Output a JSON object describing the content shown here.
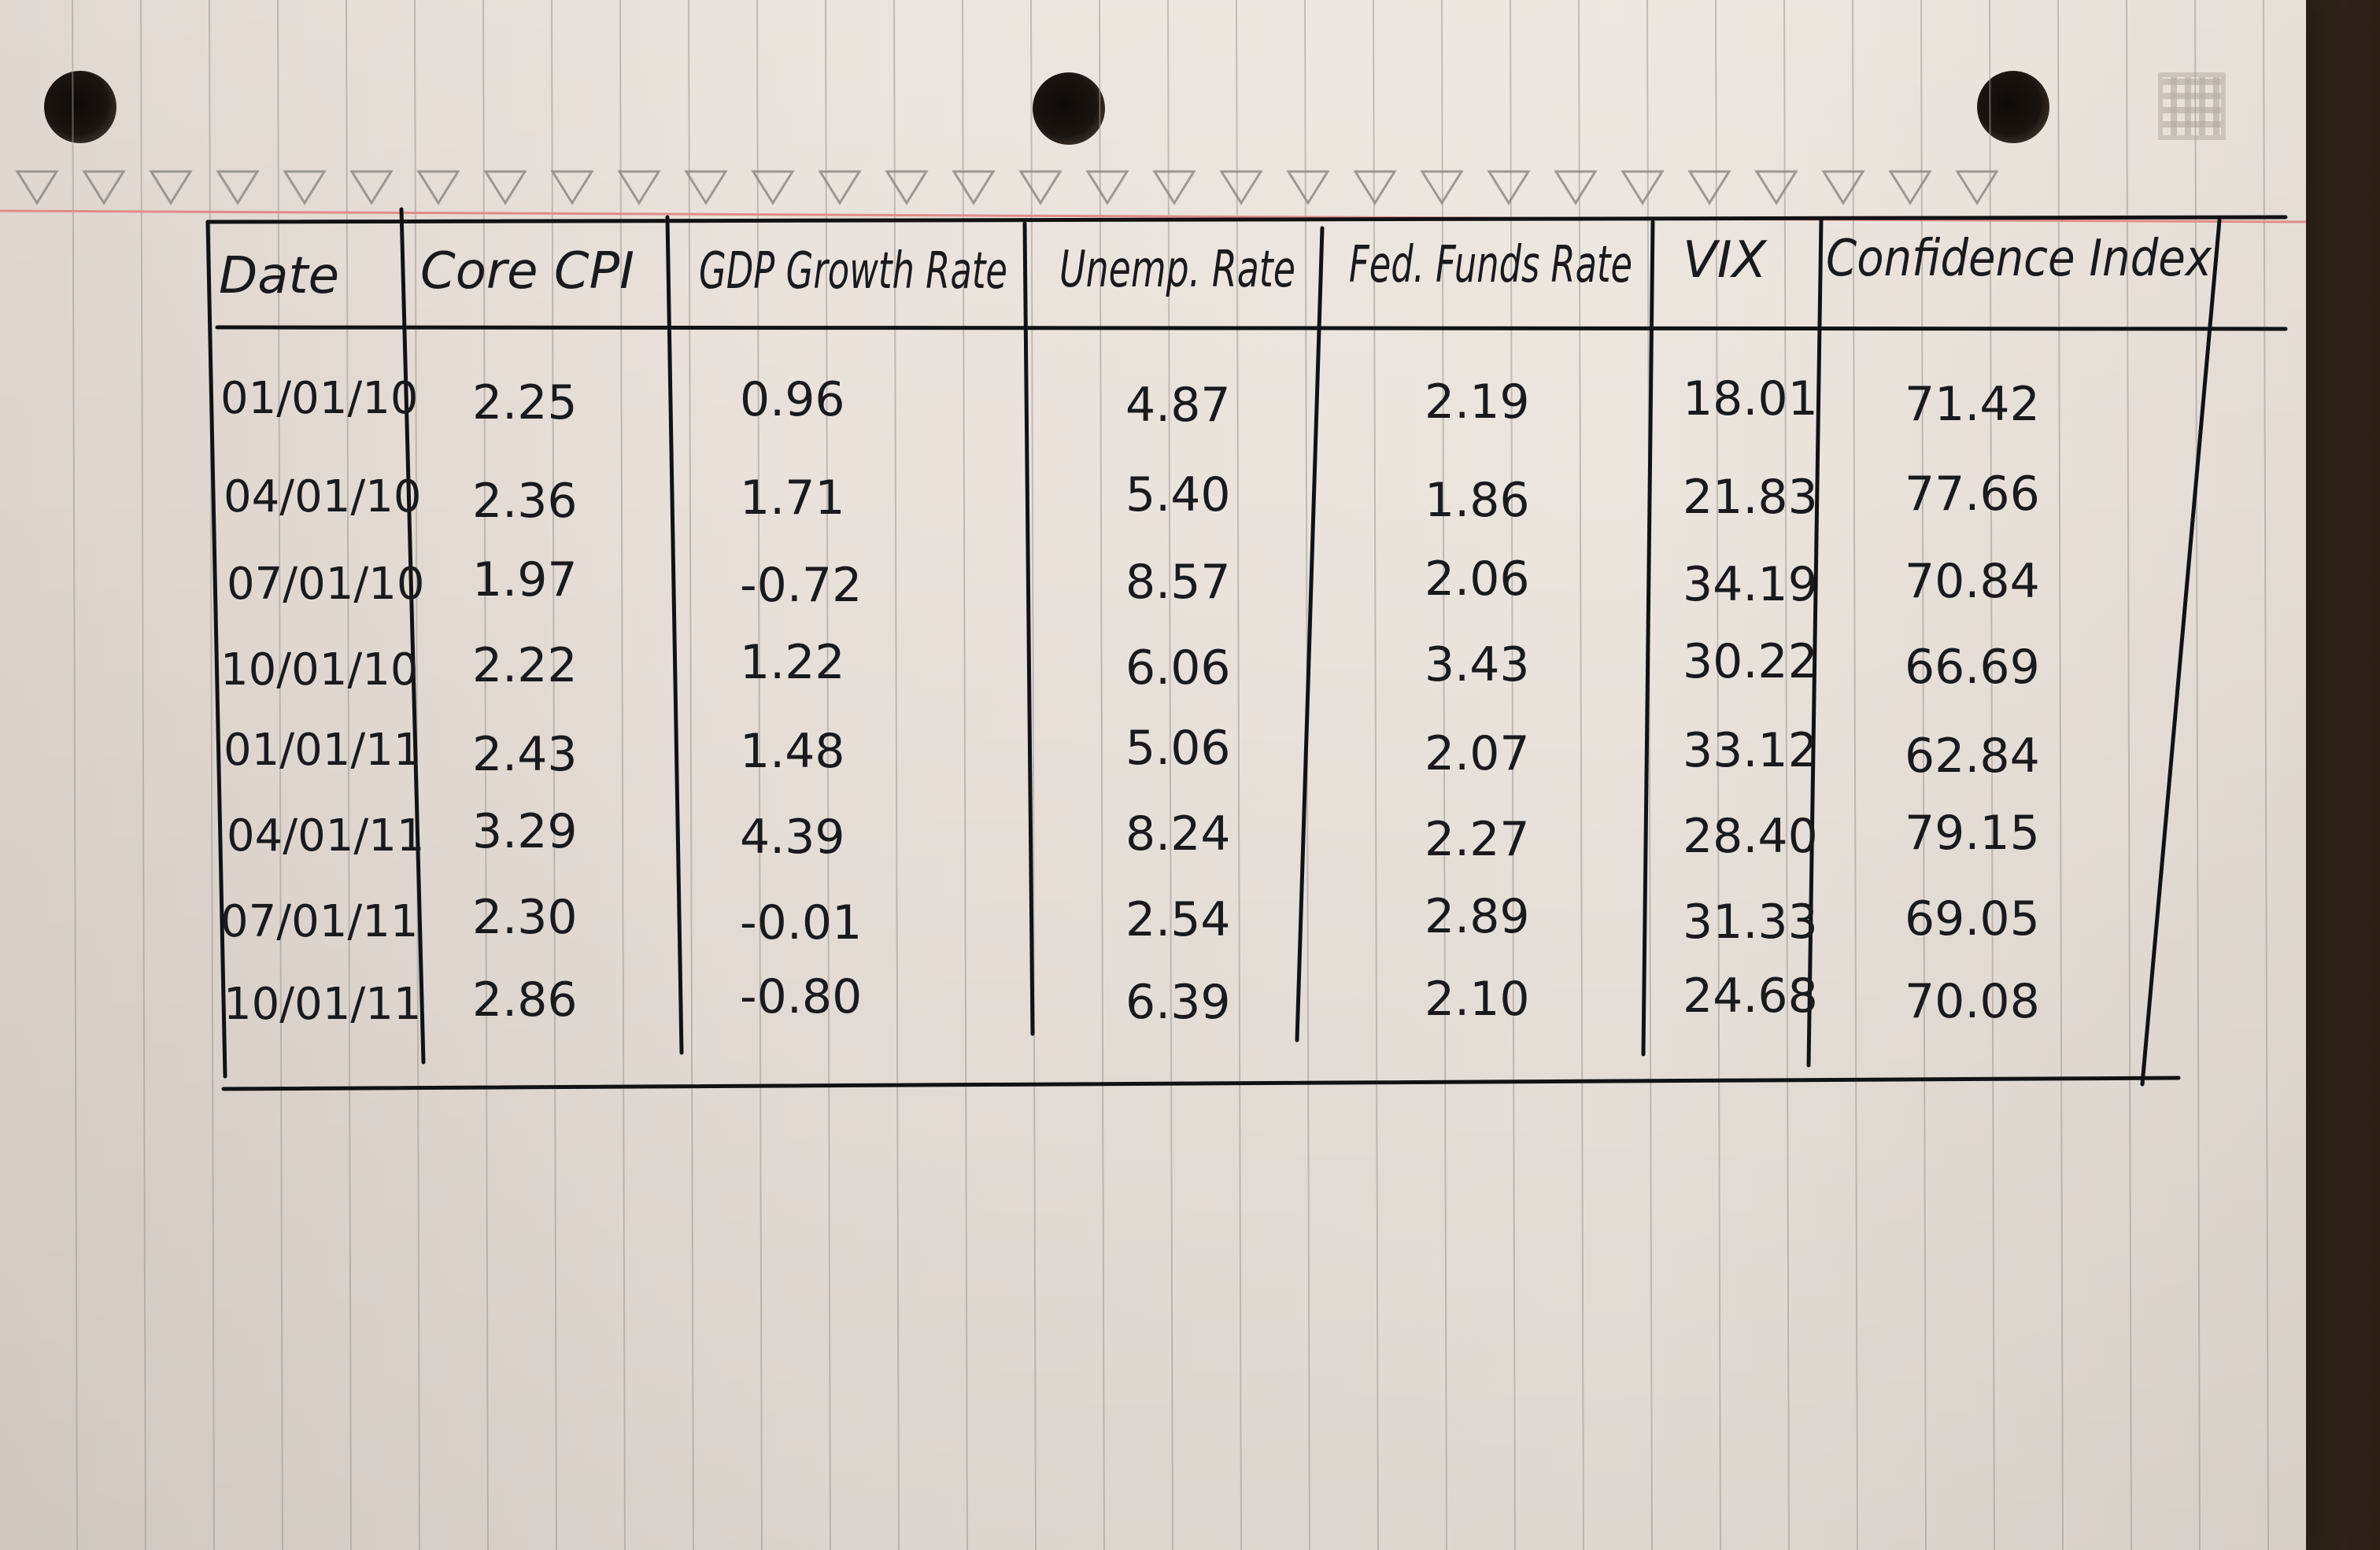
{
  "chart_data": {
    "type": "table",
    "columns": [
      "Date",
      "Core CPI",
      "GDP Growth Rate",
      "Unemp. Rate",
      "Fed. Funds Rate",
      "VIX",
      "Confidence Index"
    ],
    "rows": [
      [
        "01/01/10",
        "2.25",
        "0.96",
        "4.87",
        "2.19",
        "18.01",
        "71.42"
      ],
      [
        "04/01/10",
        "2.36",
        "1.71",
        "5.40",
        "1.86",
        "21.83",
        "77.66"
      ],
      [
        "07/01/10",
        "1.97",
        "-0.72",
        "8.57",
        "2.06",
        "34.19",
        "70.84"
      ],
      [
        "10/01/10",
        "2.22",
        "1.22",
        "6.06",
        "3.43",
        "30.22",
        "66.69"
      ],
      [
        "01/01/11",
        "2.43",
        "1.48",
        "5.06",
        "2.07",
        "33.12",
        "62.84"
      ],
      [
        "04/01/11",
        "3.29",
        "4.39",
        "8.24",
        "2.27",
        "28.40",
        "79.15"
      ],
      [
        "07/01/11",
        "2.30",
        "-0.01",
        "2.54",
        "2.89",
        "31.33",
        "69.05"
      ],
      [
        "10/01/11",
        "2.86",
        "-0.80",
        "6.39",
        "2.10",
        "24.68",
        "70.08"
      ]
    ],
    "ink_color": "#1a1a1d",
    "paper_color": "#e9e1da",
    "margin_line_color": "#e08c88"
  }
}
